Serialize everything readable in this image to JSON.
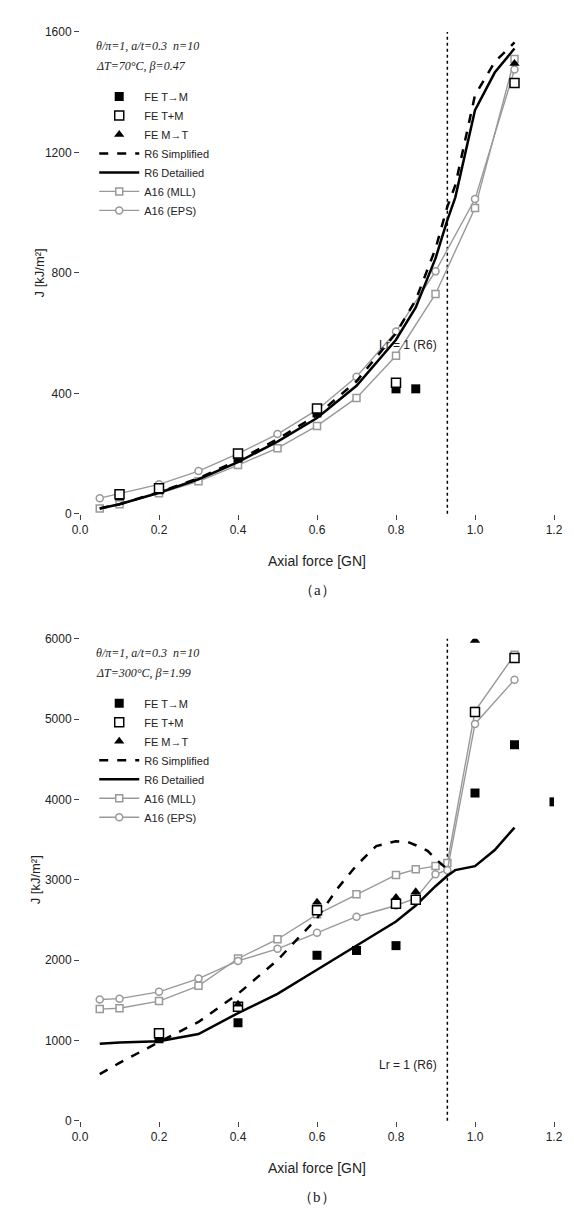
{
  "chart_data": [
    {
      "type": "line",
      "title": "θ/π=1, a/t=0.3  n=10",
      "subtitle": "ΔT=70°C, β=0.47",
      "x_label": "Axial force [GN]",
      "y_label": "J [kJ/m²]",
      "xlim": [
        0.0,
        1.2
      ],
      "ylim": [
        0,
        1600
      ],
      "xticks": [
        {
          "value": 0.0,
          "label": "0.0"
        },
        0.2,
        0.4,
        0.6,
        0.8,
        {
          "value": 1.0,
          "label": "1.0"
        },
        1.2
      ],
      "yticks": [
        0,
        400,
        800,
        1200,
        1600
      ],
      "grid": false,
      "legend": "upper left",
      "vlines": [
        {
          "x": 0.93,
          "color": "#000000",
          "line_style": "dotted"
        }
      ],
      "annotations": [
        {
          "text": "Lr = 1 (R6)",
          "x": 0.91,
          "y": 560
        },
        {
          "text": "（a）"
        }
      ],
      "series": [
        {
          "name": "FE T→M",
          "type": "scatter",
          "marker": "square",
          "color": "#000000",
          "x": [
            0.1,
            0.2,
            0.4,
            0.6,
            0.8,
            0.85
          ],
          "values": [
            60,
            80,
            185,
            335,
            415,
            415
          ]
        },
        {
          "name": "FE T+M",
          "type": "scatter",
          "marker": "square-open",
          "color": "#000000",
          "x": [
            0.1,
            0.2,
            0.4,
            0.6,
            0.8,
            1.1
          ],
          "values": [
            65,
            85,
            200,
            350,
            435,
            1430
          ]
        },
        {
          "name": "FE M→T",
          "type": "scatter",
          "marker": "triangle-up",
          "color": "#000000",
          "x": [
            1.1
          ],
          "values": [
            1495
          ]
        },
        {
          "name": "R6 Simplified",
          "type": "line",
          "line_style": "dashed",
          "color": "#000000",
          "x": [
            0.05,
            0.1,
            0.2,
            0.3,
            0.4,
            0.5,
            0.6,
            0.7,
            0.8,
            0.85,
            0.9,
            0.93,
            0.95,
            1.0,
            1.05,
            1.1
          ],
          "values": [
            18,
            32,
            72,
            118,
            178,
            248,
            328,
            440,
            600,
            710,
            880,
            1020,
            1090,
            1390,
            1500,
            1565
          ]
        },
        {
          "name": "R6 Detailied",
          "type": "line",
          "line_style": "solid",
          "color": "#000000",
          "x": [
            0.05,
            0.1,
            0.2,
            0.3,
            0.4,
            0.5,
            0.6,
            0.7,
            0.8,
            0.85,
            0.9,
            0.93,
            0.95,
            1.0,
            1.05,
            1.1
          ],
          "values": [
            18,
            32,
            70,
            115,
            172,
            240,
            318,
            425,
            578,
            685,
            848,
            975,
            1050,
            1340,
            1465,
            1545
          ]
        },
        {
          "name": "A16 (MLL)",
          "type": "line",
          "line_style": "solid",
          "marker": "square-open",
          "color": "#999999",
          "x": [
            0.05,
            0.1,
            0.2,
            0.3,
            0.4,
            0.5,
            0.6,
            0.7,
            0.8,
            0.9,
            1.0,
            1.1
          ],
          "values": [
            18,
            32,
            68,
            108,
            162,
            218,
            292,
            385,
            525,
            730,
            1015,
            1510
          ]
        },
        {
          "name": "A16 (EPS)",
          "type": "line",
          "line_style": "solid",
          "marker": "circle-open",
          "color": "#999999",
          "x": [
            0.05,
            0.1,
            0.2,
            0.3,
            0.4,
            0.5,
            0.6,
            0.7,
            0.8,
            0.9,
            1.0,
            1.1
          ],
          "values": [
            52,
            68,
            98,
            142,
            200,
            265,
            345,
            455,
            605,
            805,
            1045,
            1475
          ]
        }
      ]
    },
    {
      "type": "line",
      "title": "θ/π=1, a/t=0.3  n=10",
      "subtitle": "ΔT=300°C, β=1.99",
      "x_label": "Axial force [GN]",
      "y_label": "J [kJ/m²]",
      "xlim": [
        0.0,
        1.2
      ],
      "ylim": [
        0,
        6000
      ],
      "xticks": [
        {
          "value": 0.0,
          "label": "0.0"
        },
        0.2,
        0.4,
        0.6,
        0.8,
        {
          "value": 1.0,
          "label": "1.0"
        },
        1.2
      ],
      "yticks": [
        0,
        1000,
        2000,
        3000,
        4000,
        5000,
        6000
      ],
      "grid": false,
      "legend": "upper left",
      "vlines": [
        {
          "x": 0.93,
          "color": "#000000",
          "line_style": "dotted"
        }
      ],
      "annotations": [
        {
          "text": "Lr = 1 (R6)",
          "x": 0.91,
          "y": 700
        },
        {
          "text": "（b）"
        }
      ],
      "series": [
        {
          "name": "FE T→M",
          "type": "scatter",
          "marker": "square",
          "color": "#000000",
          "x": [
            0.2,
            0.4,
            0.6,
            0.7,
            0.8,
            1.0,
            1.1,
            1.2
          ],
          "values": [
            1020,
            1220,
            2060,
            2120,
            2180,
            4080,
            4680,
            3970
          ]
        },
        {
          "name": "FE T+M",
          "type": "scatter",
          "marker": "square-open",
          "color": "#000000",
          "x": [
            0.2,
            0.4,
            0.6,
            0.8,
            0.85,
            1.0,
            1.1
          ],
          "values": [
            1090,
            1420,
            2620,
            2700,
            2750,
            5090,
            5760
          ]
        },
        {
          "name": "FE M→T",
          "type": "scatter",
          "marker": "triangle-up",
          "color": "#000000",
          "x": [
            0.4,
            0.6,
            0.8,
            0.85,
            1.0
          ],
          "values": [
            1450,
            2720,
            2780,
            2850,
            5980
          ]
        },
        {
          "name": "R6 Simplified",
          "type": "line",
          "line_style": "dashed",
          "color": "#000000",
          "x": [
            0.05,
            0.1,
            0.2,
            0.3,
            0.4,
            0.5,
            0.6,
            0.65,
            0.7,
            0.75,
            0.8,
            0.83,
            0.85,
            0.88,
            0.9,
            0.93
          ],
          "values": [
            580,
            720,
            980,
            1230,
            1580,
            2000,
            2520,
            2880,
            3180,
            3420,
            3480,
            3470,
            3430,
            3360,
            3260,
            3130
          ]
        },
        {
          "name": "R6 Detailied",
          "type": "line",
          "line_style": "solid",
          "color": "#000000",
          "x": [
            0.05,
            0.1,
            0.2,
            0.3,
            0.4,
            0.5,
            0.6,
            0.7,
            0.8,
            0.85,
            0.9,
            0.93,
            0.95,
            1.0,
            1.05,
            1.1
          ],
          "values": [
            960,
            975,
            990,
            1080,
            1340,
            1580,
            1880,
            2180,
            2480,
            2680,
            2920,
            3050,
            3120,
            3170,
            3370,
            3650
          ]
        },
        {
          "name": "A16 (MLL)",
          "type": "line",
          "line_style": "solid",
          "marker": "square-open",
          "color": "#999999",
          "x": [
            0.05,
            0.1,
            0.2,
            0.3,
            0.4,
            0.5,
            0.6,
            0.7,
            0.8,
            0.85,
            0.9,
            0.93,
            1.0,
            1.1
          ],
          "values": [
            1390,
            1400,
            1490,
            1680,
            2020,
            2260,
            2570,
            2820,
            3060,
            3130,
            3170,
            3210,
            5100,
            5800
          ]
        },
        {
          "name": "A16 (EPS)",
          "type": "line",
          "line_style": "solid",
          "marker": "circle-open",
          "color": "#999999",
          "x": [
            0.05,
            0.1,
            0.2,
            0.3,
            0.4,
            0.5,
            0.6,
            0.7,
            0.8,
            0.85,
            0.9,
            0.93,
            1.0,
            1.1
          ],
          "values": [
            1510,
            1520,
            1605,
            1770,
            1990,
            2140,
            2340,
            2540,
            2680,
            2770,
            3070,
            3120,
            4940,
            5490
          ]
        }
      ]
    }
  ]
}
